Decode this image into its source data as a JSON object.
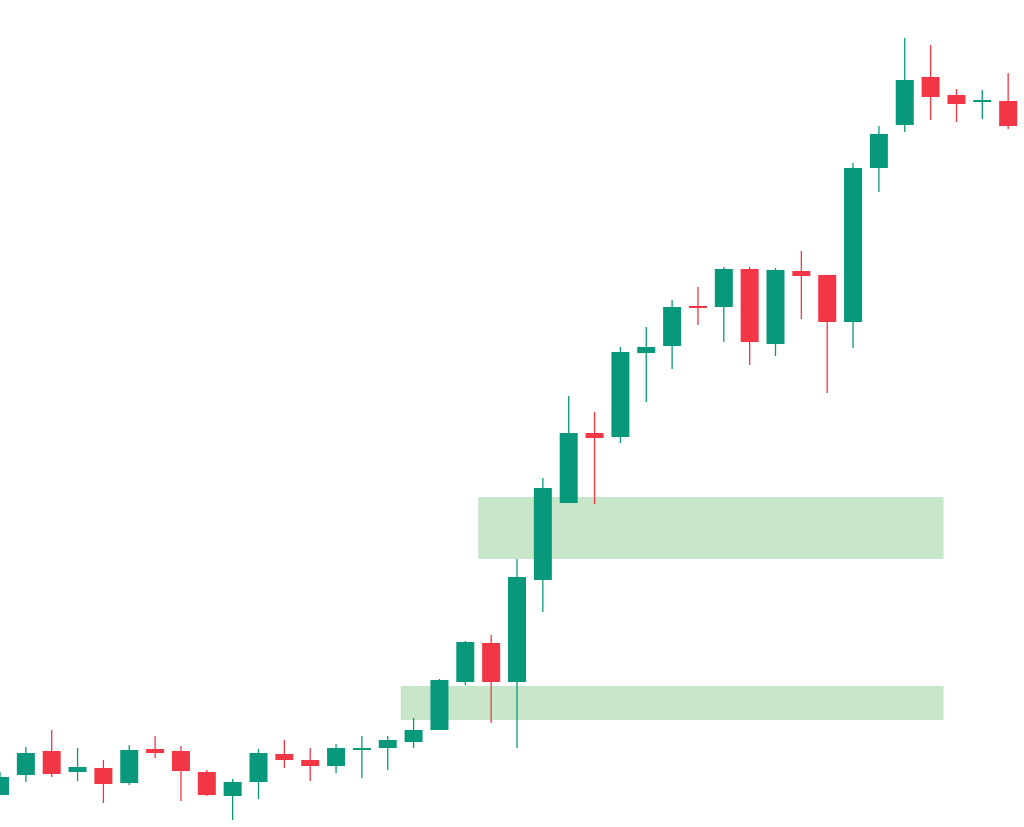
{
  "chart_data": {
    "type": "candlestick",
    "title": "",
    "xlabel": "",
    "ylabel": "",
    "grid": false,
    "ylim": [
      0,
      827
    ],
    "colors": {
      "up": "#08987c",
      "down": "#f23645",
      "zone": "#c8e6c9"
    },
    "zones": [
      {
        "x_start": 18.5,
        "x_end": 36.5,
        "low": 268,
        "high": 330
      },
      {
        "x_start": 15.5,
        "x_end": 36.5,
        "low": 107,
        "high": 141
      }
    ],
    "candles": [
      {
        "x": 0,
        "open": 32,
        "high": 55,
        "low": 32,
        "close": 50
      },
      {
        "x": 1,
        "open": 52,
        "high": 80,
        "low": 45,
        "close": 74
      },
      {
        "x": 2,
        "open": 76,
        "high": 97,
        "low": 50,
        "close": 53
      },
      {
        "x": 3,
        "open": 55,
        "high": 79,
        "low": 46,
        "close": 60
      },
      {
        "x": 4,
        "open": 59,
        "high": 67,
        "low": 24,
        "close": 43
      },
      {
        "x": 5,
        "open": 44,
        "high": 82,
        "low": 42,
        "close": 77
      },
      {
        "x": 6,
        "open": 78,
        "high": 91,
        "low": 69,
        "close": 74
      },
      {
        "x": 7,
        "open": 76,
        "high": 81,
        "low": 26,
        "close": 56
      },
      {
        "x": 8,
        "open": 55,
        "high": 57,
        "low": 31,
        "close": 32
      },
      {
        "x": 9,
        "open": 31,
        "high": 48,
        "low": 7,
        "close": 45
      },
      {
        "x": 10,
        "open": 45,
        "high": 78,
        "low": 28,
        "close": 74
      },
      {
        "x": 11,
        "open": 73,
        "high": 87,
        "low": 59,
        "close": 67
      },
      {
        "x": 12,
        "open": 67,
        "high": 79,
        "low": 46,
        "close": 61
      },
      {
        "x": 13,
        "open": 61,
        "high": 83,
        "low": 54,
        "close": 79
      },
      {
        "x": 14,
        "open": 79,
        "high": 91,
        "low": 49,
        "close": 79
      },
      {
        "x": 15,
        "open": 79,
        "high": 91,
        "low": 57,
        "close": 87
      },
      {
        "x": 16,
        "open": 85,
        "high": 109,
        "low": 79,
        "close": 97
      },
      {
        "x": 17,
        "open": 97,
        "high": 148,
        "low": 97,
        "close": 147
      },
      {
        "x": 18,
        "open": 145,
        "high": 186,
        "low": 142,
        "close": 185
      },
      {
        "x": 19,
        "open": 184,
        "high": 192,
        "low": 104,
        "close": 145
      },
      {
        "x": 20,
        "open": 145,
        "high": 268,
        "low": 79,
        "close": 250
      },
      {
        "x": 21,
        "open": 247,
        "high": 349,
        "low": 215,
        "close": 339
      },
      {
        "x": 22,
        "open": 324,
        "high": 431,
        "low": 329,
        "close": 394
      },
      {
        "x": 23,
        "open": 394,
        "high": 415,
        "low": 323,
        "close": 389
      },
      {
        "x": 24,
        "open": 390,
        "high": 480,
        "low": 384,
        "close": 475
      },
      {
        "x": 25,
        "open": 474,
        "high": 500,
        "low": 425,
        "close": 480
      },
      {
        "x": 26,
        "open": 481,
        "high": 527,
        "low": 458,
        "close": 520
      },
      {
        "x": 27,
        "open": 521,
        "high": 540,
        "low": 502,
        "close": 519
      },
      {
        "x": 28,
        "open": 520,
        "high": 560,
        "low": 485,
        "close": 558
      },
      {
        "x": 29,
        "open": 558,
        "high": 560,
        "low": 462,
        "close": 485
      },
      {
        "x": 30,
        "open": 483,
        "high": 559,
        "low": 471,
        "close": 557
      },
      {
        "x": 31,
        "open": 556,
        "high": 576,
        "low": 508,
        "close": 551
      },
      {
        "x": 32,
        "open": 552,
        "high": 552,
        "low": 434,
        "close": 505
      },
      {
        "x": 33,
        "open": 505,
        "high": 664,
        "low": 479,
        "close": 659
      },
      {
        "x": 34,
        "open": 659,
        "high": 701,
        "low": 635,
        "close": 693
      },
      {
        "x": 35,
        "open": 702,
        "high": 789,
        "low": 695,
        "close": 747
      },
      {
        "x": 36,
        "open": 750,
        "high": 782,
        "low": 707,
        "close": 730
      },
      {
        "x": 37,
        "open": 732,
        "high": 738,
        "low": 705,
        "close": 723
      },
      {
        "x": 38,
        "open": 726,
        "high": 737,
        "low": 708,
        "close": 727
      },
      {
        "x": 39,
        "open": 726,
        "high": 754,
        "low": 698,
        "close": 701
      }
    ]
  }
}
